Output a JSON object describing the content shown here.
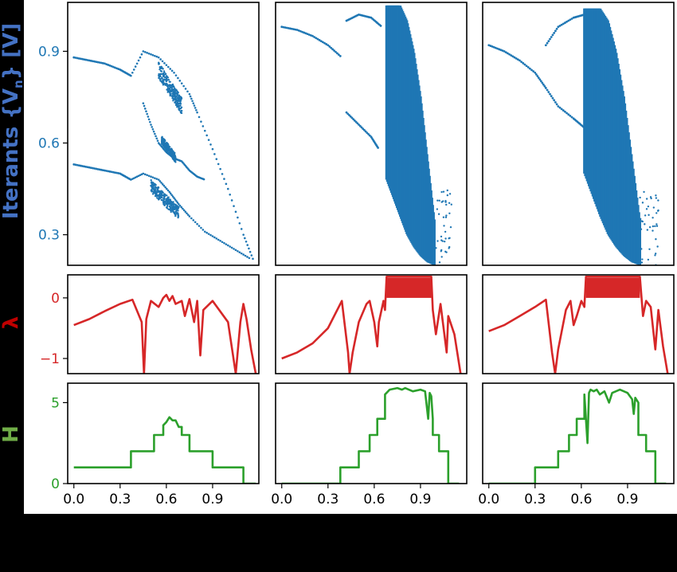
{
  "figure": {
    "colors": {
      "iterants": "#1f77b4",
      "lyapunov": "#d62728",
      "entropy": "#2ca02c",
      "ylabel_iterants": "#4472c4",
      "ylabel_lyapunov": "#c00000",
      "ylabel_entropy": "#70ad47"
    }
  },
  "chart_data": [
    {
      "type": "scatter",
      "panel": "iterants",
      "ylabel": "Iterants {V",
      "ylabel_sub": "n",
      "ylabel_tail": "} [V]",
      "ylim": [
        0.2,
        1.06
      ],
      "yticks": [
        0.3,
        0.6,
        0.9
      ],
      "xlim": [
        -0.04,
        1.2
      ],
      "columns": [
        {
          "branches": [
            {
              "x": [
                0.0,
                0.1,
                0.2,
                0.3,
                0.37
              ],
              "y": [
                0.88,
                0.87,
                0.86,
                0.84,
                0.82
              ]
            },
            {
              "x": [
                0.0,
                0.1,
                0.2,
                0.3,
                0.37
              ],
              "y": [
                0.53,
                0.52,
                0.51,
                0.5,
                0.48
              ]
            }
          ],
          "envelope": [
            {
              "x": [
                0.37,
                0.45,
                0.55,
                0.65,
                0.75,
                0.8,
                0.9,
                1.0,
                1.1,
                1.17
              ],
              "y": [
                0.82,
                0.9,
                0.88,
                0.83,
                0.76,
                0.7,
                0.58,
                0.45,
                0.3,
                0.21
              ]
            },
            {
              "x": [
                0.37,
                0.45,
                0.55,
                0.62,
                0.68,
                0.75,
                0.85,
                0.95,
                1.05,
                1.15
              ],
              "y": [
                0.48,
                0.5,
                0.48,
                0.44,
                0.4,
                0.36,
                0.31,
                0.28,
                0.25,
                0.22
              ]
            },
            {
              "x": [
                0.45,
                0.5,
                0.55,
                0.6,
                0.65,
                0.7,
                0.75,
                0.8,
                0.85
              ],
              "y": [
                0.73,
                0.66,
                0.6,
                0.57,
                0.55,
                0.54,
                0.51,
                0.49,
                0.48
              ]
            }
          ],
          "clouds": [
            {
              "x": [
                0.55,
                0.7
              ],
              "y": [
                0.72,
                0.84
              ]
            },
            {
              "x": [
                0.57,
                0.66
              ],
              "y": [
                0.55,
                0.61
              ]
            },
            {
              "x": [
                0.5,
                0.68
              ],
              "y": [
                0.37,
                0.46
              ]
            }
          ]
        },
        {
          "branches": [
            {
              "x": [
                0.0,
                0.1,
                0.2,
                0.3,
                0.39
              ],
              "y": [
                0.98,
                0.97,
                0.95,
                0.92,
                0.88
              ]
            },
            {
              "x": [
                0.42,
                0.5,
                0.58,
                0.63
              ],
              "y": [
                0.7,
                0.66,
                0.62,
                0.58
              ]
            },
            {
              "x": [
                0.42,
                0.5,
                0.58,
                0.65
              ],
              "y": [
                1.0,
                1.02,
                1.01,
                0.98
              ]
            }
          ],
          "envelope": [],
          "clouds": [
            {
              "band": true,
              "x": [
                0.68,
                0.99
              ],
              "ytop": [
                1.05,
                1.05,
                1.05,
                1.0,
                0.9,
                0.75,
                0.55,
                0.35
              ],
              "ybot": [
                0.48,
                0.42,
                0.36,
                0.3,
                0.26,
                0.23,
                0.21,
                0.2
              ]
            }
          ]
        },
        {
          "branches": [
            {
              "x": [
                0.0,
                0.1,
                0.2,
                0.3,
                0.37
              ],
              "y": [
                0.92,
                0.9,
                0.87,
                0.83,
                0.78
              ]
            },
            {
              "x": [
                0.37,
                0.45,
                0.55,
                0.62
              ],
              "y": [
                0.78,
                0.72,
                0.68,
                0.65
              ]
            },
            {
              "x": [
                0.37,
                0.45,
                0.55,
                0.62
              ],
              "y": [
                0.92,
                0.98,
                1.01,
                1.02
              ]
            }
          ],
          "envelope": [],
          "clouds": [
            {
              "band": true,
              "x": [
                0.62,
                0.98
              ],
              "ytop": [
                1.04,
                1.04,
                1.04,
                1.0,
                0.9,
                0.75,
                0.55,
                0.35
              ],
              "ybot": [
                0.5,
                0.43,
                0.36,
                0.3,
                0.26,
                0.23,
                0.21,
                0.2
              ]
            }
          ]
        }
      ]
    },
    {
      "type": "line",
      "panel": "lyapunov",
      "ylabel": "λ",
      "ylim": [
        -1.25,
        0.38
      ],
      "yticks": [
        0,
        -1
      ],
      "xlim": [
        -0.04,
        1.2
      ],
      "columns": [
        {
          "x": [
            0.0,
            0.1,
            0.2,
            0.3,
            0.38,
            0.44,
            0.455,
            0.47,
            0.5,
            0.55,
            0.58,
            0.6,
            0.62,
            0.64,
            0.66,
            0.7,
            0.72,
            0.75,
            0.78,
            0.8,
            0.82,
            0.84,
            0.9,
            1.0,
            1.05,
            1.08,
            1.1,
            1.12,
            1.15,
            1.18
          ],
          "y": [
            -0.45,
            -0.35,
            -0.22,
            -0.1,
            -0.03,
            -0.4,
            -1.25,
            -0.35,
            -0.05,
            -0.15,
            0.0,
            0.05,
            -0.05,
            0.03,
            -0.1,
            -0.05,
            -0.3,
            -0.02,
            -0.4,
            -0.05,
            -0.95,
            -0.2,
            -0.05,
            -0.4,
            -1.25,
            -0.4,
            -0.1,
            -0.35,
            -0.85,
            -1.25
          ]
        },
        {
          "x": [
            0.0,
            0.1,
            0.2,
            0.3,
            0.39,
            0.43,
            0.44,
            0.46,
            0.5,
            0.55,
            0.57,
            0.6,
            0.62,
            0.63,
            0.66,
            0.67,
            0.68,
            0.97,
            0.98,
            1.0,
            1.03,
            1.07,
            1.08,
            1.12,
            1.16
          ],
          "y": [
            -1.0,
            -0.9,
            -0.75,
            -0.5,
            -0.05,
            -0.9,
            -1.25,
            -0.9,
            -0.4,
            -0.1,
            -0.05,
            -0.4,
            -0.8,
            -0.4,
            -0.05,
            -0.2,
            0.35,
            0.35,
            -0.2,
            -0.6,
            -0.1,
            -0.9,
            -0.3,
            -0.6,
            -1.25
          ]
        },
        {
          "x": [
            0.0,
            0.1,
            0.2,
            0.3,
            0.37,
            0.41,
            0.43,
            0.45,
            0.5,
            0.53,
            0.55,
            0.57,
            0.6,
            0.62,
            0.63,
            0.98,
            1.0,
            1.02,
            1.05,
            1.08,
            1.1,
            1.13,
            1.16
          ],
          "y": [
            -0.55,
            -0.45,
            -0.3,
            -0.15,
            -0.03,
            -0.9,
            -1.25,
            -0.85,
            -0.2,
            -0.05,
            -0.45,
            -0.3,
            -0.05,
            -0.15,
            0.35,
            0.35,
            -0.3,
            -0.05,
            -0.15,
            -0.85,
            -0.2,
            -0.8,
            -1.25
          ]
        }
      ],
      "chaos_fill": [
        null,
        [
          0.68,
          0.97
        ],
        [
          0.63,
          0.98
        ]
      ]
    },
    {
      "type": "line",
      "panel": "entropy",
      "ylabel": "H",
      "ylim": [
        0,
        6.2
      ],
      "yticks": [
        5,
        0
      ],
      "xlim": [
        -0.04,
        1.2
      ],
      "xticks": [
        0.0,
        0.3,
        0.6,
        0.9
      ],
      "xticklabels": [
        "0.0",
        "0.3",
        "0.6",
        "0.9"
      ],
      "columns": [
        {
          "x": [
            0.0,
            0.37,
            0.37,
            0.52,
            0.52,
            0.58,
            0.58,
            0.6,
            0.62,
            0.64,
            0.66,
            0.68,
            0.7,
            0.7,
            0.75,
            0.75,
            0.9,
            0.9,
            1.1,
            1.1,
            1.18
          ],
          "y": [
            1.0,
            1.0,
            2.0,
            2.0,
            3.0,
            3.0,
            3.6,
            3.8,
            4.1,
            3.9,
            3.9,
            3.5,
            3.5,
            3.0,
            3.0,
            2.0,
            2.0,
            1.0,
            1.0,
            0.0,
            0.0
          ]
        },
        {
          "x": [
            0.0,
            0.38,
            0.38,
            0.5,
            0.5,
            0.57,
            0.57,
            0.62,
            0.62,
            0.67,
            0.67,
            0.7,
            0.75,
            0.78,
            0.8,
            0.85,
            0.9,
            0.93,
            0.95,
            0.96,
            0.97,
            0.98,
            0.98,
            1.02,
            1.02,
            1.08,
            1.08,
            1.15
          ],
          "y": [
            0.0,
            0.0,
            1.0,
            1.0,
            2.0,
            2.0,
            3.0,
            3.0,
            4.0,
            4.0,
            5.5,
            5.8,
            5.9,
            5.8,
            5.9,
            5.7,
            5.8,
            5.7,
            4.0,
            5.6,
            5.4,
            4.0,
            3.0,
            3.0,
            2.0,
            2.0,
            0.0,
            0.0
          ]
        },
        {
          "x": [
            0.0,
            0.3,
            0.3,
            0.45,
            0.45,
            0.52,
            0.52,
            0.57,
            0.57,
            0.62,
            0.62,
            0.64,
            0.65,
            0.66,
            0.68,
            0.7,
            0.72,
            0.75,
            0.78,
            0.8,
            0.85,
            0.9,
            0.93,
            0.94,
            0.95,
            0.97,
            0.97,
            1.02,
            1.02,
            1.08,
            1.08,
            1.15
          ],
          "y": [
            0.0,
            0.0,
            1.0,
            1.0,
            2.0,
            2.0,
            3.0,
            3.0,
            4.0,
            4.0,
            5.5,
            2.5,
            5.6,
            5.8,
            5.7,
            5.8,
            5.5,
            5.7,
            5.0,
            5.6,
            5.8,
            5.6,
            5.2,
            4.3,
            5.3,
            5.0,
            3.0,
            3.0,
            2.0,
            2.0,
            0.0,
            0.0
          ]
        }
      ]
    }
  ]
}
